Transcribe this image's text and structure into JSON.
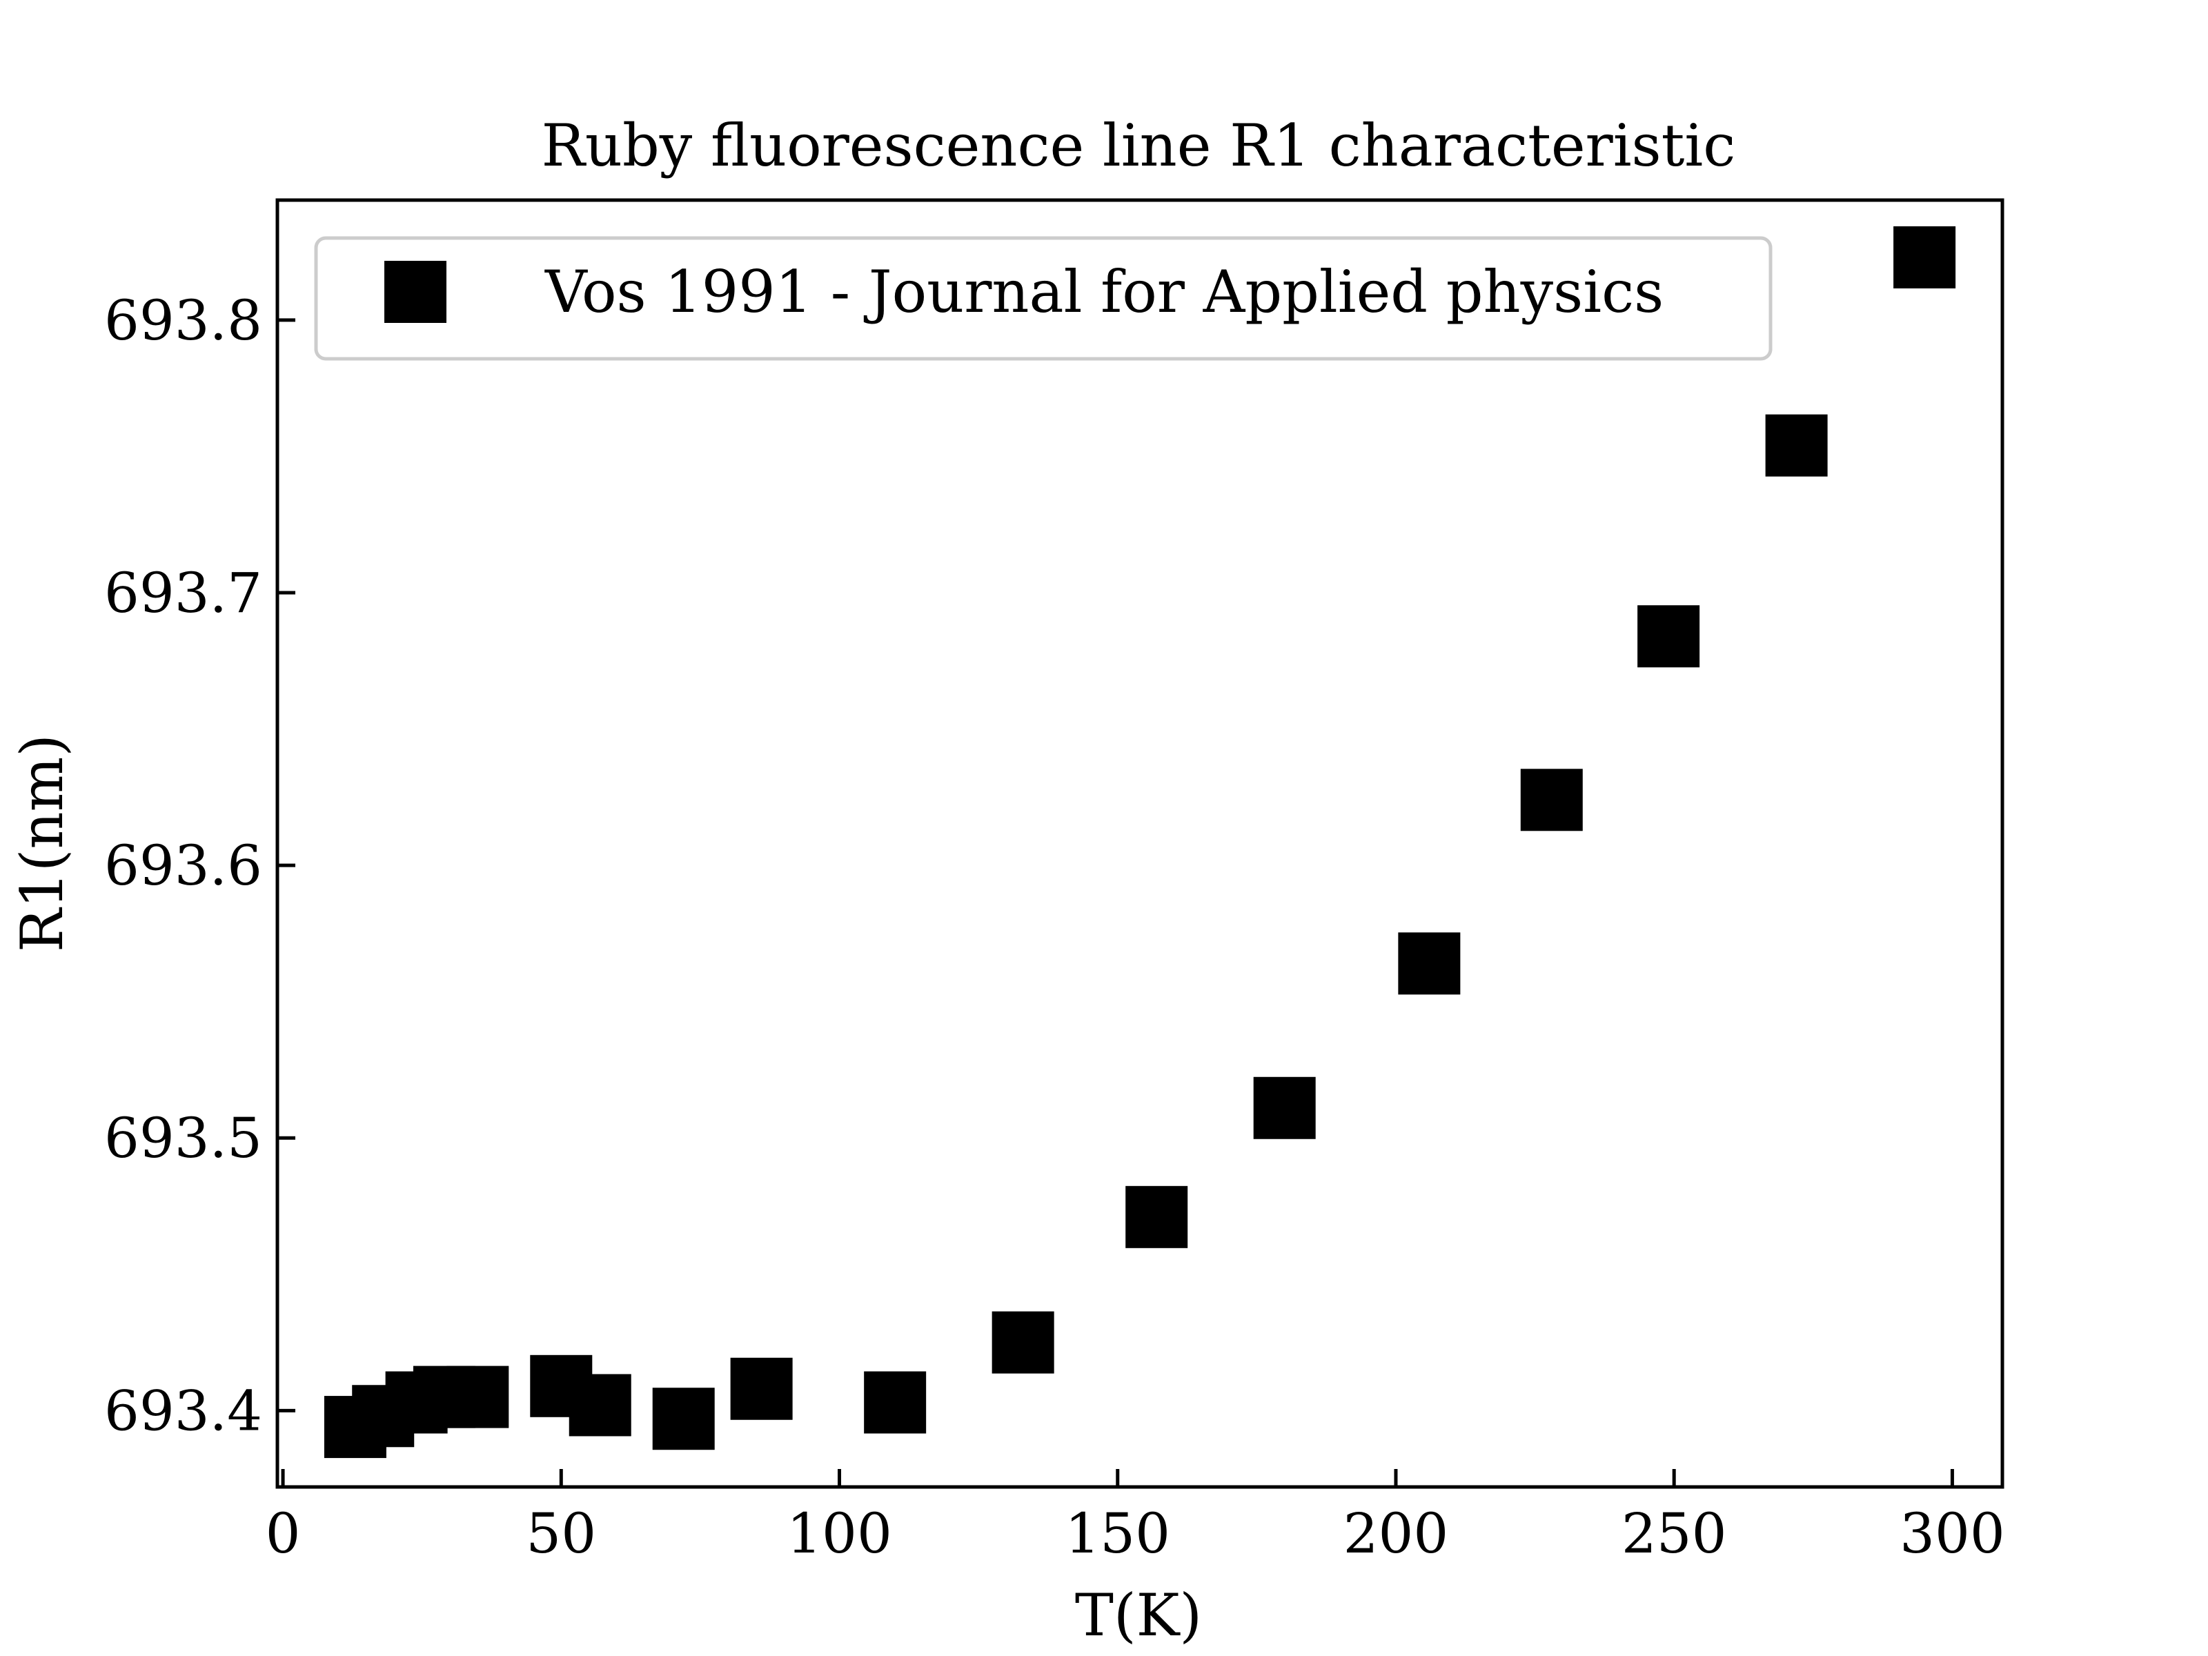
{
  "chart_data": {
    "type": "scatter",
    "title": "Ruby fluorescence line R1 characteristic",
    "xlabel": "T(K)",
    "ylabel": "R1(nm)",
    "xlim": [
      -1,
      309
    ],
    "ylim": [
      693.372,
      693.844
    ],
    "xticks": [
      0,
      50,
      100,
      150,
      200,
      250,
      300
    ],
    "yticks": [
      693.4,
      693.5,
      693.6,
      693.7,
      693.8
    ],
    "xtick_labels": [
      "0",
      "50",
      "100",
      "150",
      "200",
      "250",
      "300"
    ],
    "ytick_labels": [
      "693.4",
      "693.5",
      "693.6",
      "693.7",
      "693.8"
    ],
    "grid": false,
    "legend_position": "top-left",
    "marker": "square",
    "colors": {
      "marker": "#000000",
      "axes": "#000000",
      "legend_border": "#cccccc"
    },
    "series": [
      {
        "name": "Vos 1991 - Journal for Applied physics",
        "x": [
          13,
          18,
          24,
          29,
          35,
          50,
          57,
          72,
          86,
          110,
          133,
          157,
          180,
          206,
          228,
          249,
          272,
          295
        ],
        "y": [
          693.394,
          693.398,
          693.403,
          693.405,
          693.405,
          693.409,
          693.402,
          693.397,
          693.408,
          693.403,
          693.425,
          693.471,
          693.511,
          693.564,
          693.624,
          693.684,
          693.754,
          693.823
        ]
      }
    ]
  }
}
